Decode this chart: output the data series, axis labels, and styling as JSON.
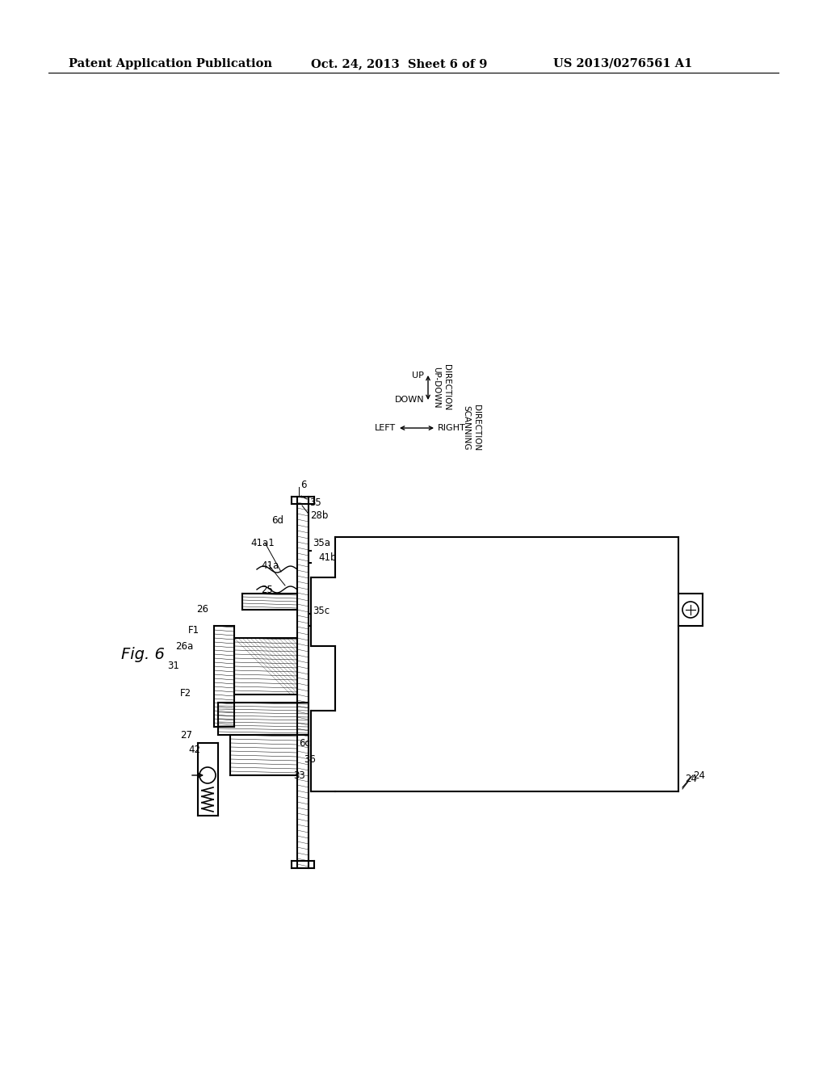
{
  "background_color": "#ffffff",
  "header_left": "Patent Application Publication",
  "header_mid": "Oct. 24, 2013  Sheet 6 of 9",
  "header_right": "US 2013/0276561 A1",
  "fig_label": "Fig. 6",
  "header_fontsize": 10.5
}
